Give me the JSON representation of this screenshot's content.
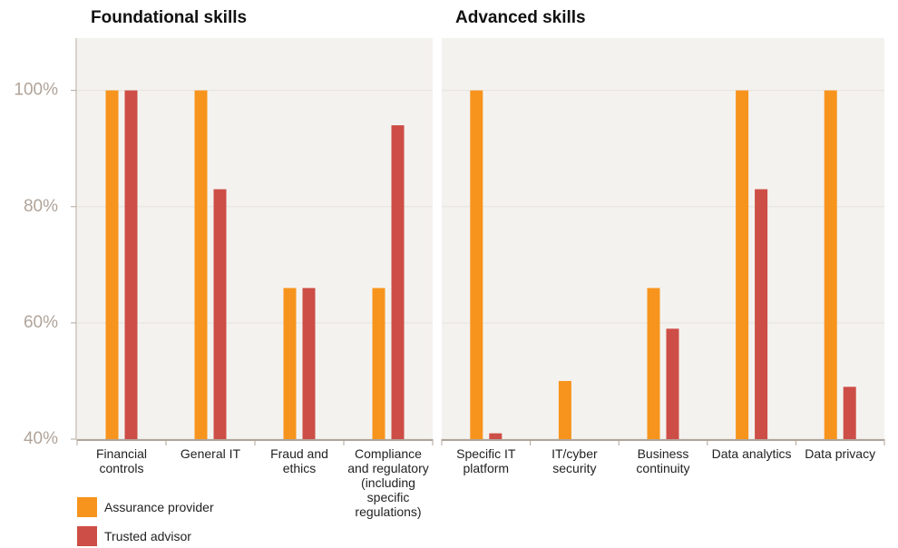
{
  "chart_data": {
    "type": "bar",
    "groups": [
      {
        "title": "Foundational skills",
        "categories": [
          "Financial controls",
          "General IT",
          "Fraud and ethics",
          "Compliance and regulatory (including specific regulations)"
        ]
      },
      {
        "title": "Advanced skills",
        "categories": [
          "Specific IT platform",
          "IT/cyber security",
          "Business continuity",
          "Data analytics",
          "Data privacy"
        ]
      }
    ],
    "series": [
      {
        "name": "Assurance provider",
        "color": "#f7941d",
        "values": [
          100,
          100,
          66,
          66,
          100,
          50,
          66,
          100,
          100
        ]
      },
      {
        "name": "Trusted advisor",
        "color": "#cd4e46",
        "values": [
          100,
          83,
          66,
          94,
          41,
          40,
          59,
          83,
          49
        ]
      }
    ],
    "ylim": [
      40,
      109
    ],
    "yticks": [
      {
        "value": 40,
        "label": "40%"
      },
      {
        "value": 60,
        "label": "60%"
      },
      {
        "value": 80,
        "label": "80%"
      },
      {
        "value": 100,
        "label": "100%"
      }
    ],
    "grid": true
  }
}
